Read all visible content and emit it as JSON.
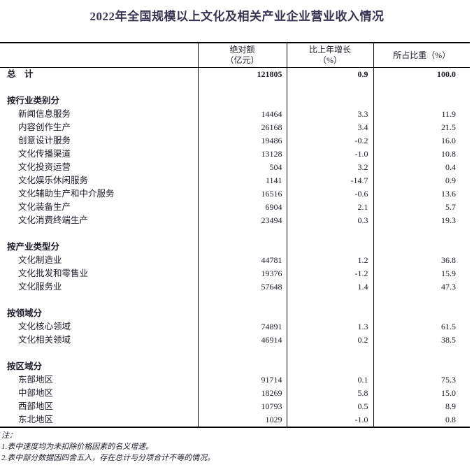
{
  "page": {
    "title": "2022年全国规模以上文化及相关产业企业营业收入情况"
  },
  "table": {
    "header": {
      "col1": "",
      "col2_line1": "绝对额",
      "col2_line2": "（亿元）",
      "col3_line1": "比上年增长",
      "col3_line2": "（%）",
      "col4": "所占比重（%）"
    },
    "rows": [
      {
        "type": "total",
        "label": "总　计",
        "abs": "121805",
        "growth": "0.9",
        "share": "100.0"
      },
      {
        "type": "blank",
        "label": "",
        "abs": "",
        "growth": "",
        "share": ""
      },
      {
        "type": "section",
        "label": "按行业类别分",
        "abs": "",
        "growth": "",
        "share": ""
      },
      {
        "type": "item",
        "label": "新闻信息服务",
        "abs": "14464",
        "growth": "3.3",
        "share": "11.9"
      },
      {
        "type": "item",
        "label": "内容创作生产",
        "abs": "26168",
        "growth": "3.4",
        "share": "21.5"
      },
      {
        "type": "item",
        "label": "创意设计服务",
        "abs": "19486",
        "growth": "-0.2",
        "share": "16.0"
      },
      {
        "type": "item",
        "label": "文化传播渠道",
        "abs": "13128",
        "growth": "-1.0",
        "share": "10.8"
      },
      {
        "type": "item",
        "label": "文化投资运营",
        "abs": "504",
        "growth": "3.2",
        "share": "0.4"
      },
      {
        "type": "item",
        "label": "文化娱乐休闲服务",
        "abs": "1141",
        "growth": "-14.7",
        "share": "0.9"
      },
      {
        "type": "item",
        "label": "文化辅助生产和中介服务",
        "abs": "16516",
        "growth": "-0.6",
        "share": "13.6"
      },
      {
        "type": "item",
        "label": "文化装备生产",
        "abs": "6904",
        "growth": "2.1",
        "share": "5.7"
      },
      {
        "type": "item",
        "label": "文化消费终端生产",
        "abs": "23494",
        "growth": "0.3",
        "share": "19.3"
      },
      {
        "type": "blank",
        "label": "",
        "abs": "",
        "growth": "",
        "share": ""
      },
      {
        "type": "section",
        "label": "按产业类型分",
        "abs": "",
        "growth": "",
        "share": ""
      },
      {
        "type": "item",
        "label": "文化制造业",
        "abs": "44781",
        "growth": "1.2",
        "share": "36.8"
      },
      {
        "type": "item",
        "label": "文化批发和零售业",
        "abs": "19376",
        "growth": "-1.2",
        "share": "15.9"
      },
      {
        "type": "item",
        "label": "文化服务业",
        "abs": "57648",
        "growth": "1.4",
        "share": "47.3"
      },
      {
        "type": "blank",
        "label": "",
        "abs": "",
        "growth": "",
        "share": ""
      },
      {
        "type": "section",
        "label": "按领域分",
        "abs": "",
        "growth": "",
        "share": ""
      },
      {
        "type": "item",
        "label": "文化核心领域",
        "abs": "74891",
        "growth": "1.3",
        "share": "61.5"
      },
      {
        "type": "item",
        "label": "文化相关领域",
        "abs": "46914",
        "growth": "0.2",
        "share": "38.5"
      },
      {
        "type": "blank",
        "label": "",
        "abs": "",
        "growth": "",
        "share": ""
      },
      {
        "type": "section",
        "label": "按区域分",
        "abs": "",
        "growth": "",
        "share": ""
      },
      {
        "type": "item",
        "label": "东部地区",
        "abs": "91714",
        "growth": "0.1",
        "share": "75.3"
      },
      {
        "type": "item",
        "label": "中部地区",
        "abs": "18269",
        "growth": "5.8",
        "share": "15.0"
      },
      {
        "type": "item",
        "label": "西部地区",
        "abs": "10793",
        "growth": "0.5",
        "share": "8.9"
      },
      {
        "type": "item",
        "label": "东北地区",
        "abs": "1029",
        "growth": "-1.0",
        "share": "0.8"
      }
    ]
  },
  "notes": {
    "label": "注：",
    "items": [
      "1.表中速度均为未扣除价格因素的名义增速。",
      "2.表中部分数据因四舍五入，存在总计与分项合计不等的情况。"
    ]
  },
  "colors": {
    "title": "#363452",
    "text": "#1c1c28",
    "border": "#000000"
  }
}
